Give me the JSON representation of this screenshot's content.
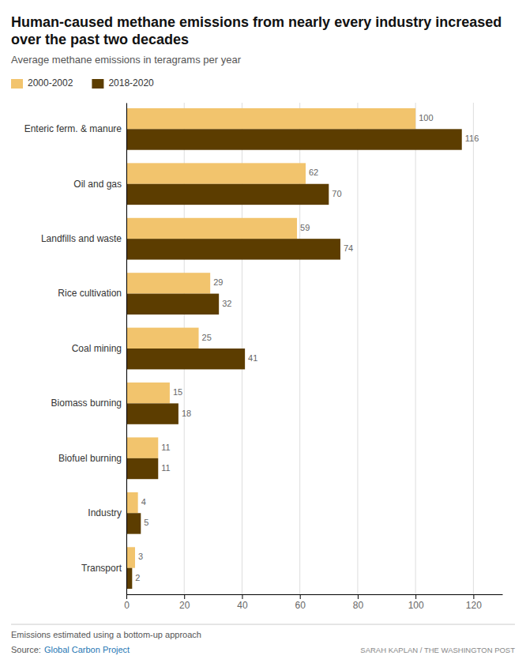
{
  "chart_data": {
    "type": "bar",
    "orientation": "horizontal",
    "title": "Human-caused methane emissions from nearly every industry increased over the past two decades",
    "subtitle": "Average methane emissions in teragrams per year",
    "categories": [
      "Enteric ferm. & manure",
      "Oil and gas",
      "Landfills and waste",
      "Rice cultivation",
      "Coal mining",
      "Biomass burning",
      "Biofuel burning",
      "Industry",
      "Transport"
    ],
    "series": [
      {
        "name": "2000-2002",
        "color": "#F2C46D",
        "values": [
          100,
          62,
          59,
          29,
          25,
          15,
          11,
          4,
          3
        ]
      },
      {
        "name": "2018-2020",
        "color": "#5C3D00",
        "values": [
          116,
          70,
          74,
          32,
          41,
          18,
          11,
          5,
          2
        ]
      }
    ],
    "xlim": [
      0,
      130
    ],
    "xticks": [
      0,
      20,
      40,
      60,
      80,
      100,
      120
    ],
    "grid": true,
    "legend": "top-left",
    "data_labels": true,
    "footnote": "Emissions estimated using a bottom-up approach",
    "source_label": "Source:",
    "source": "Global Carbon Project",
    "byline": "SARAH KAPLAN / THE WASHINGTON POST"
  }
}
